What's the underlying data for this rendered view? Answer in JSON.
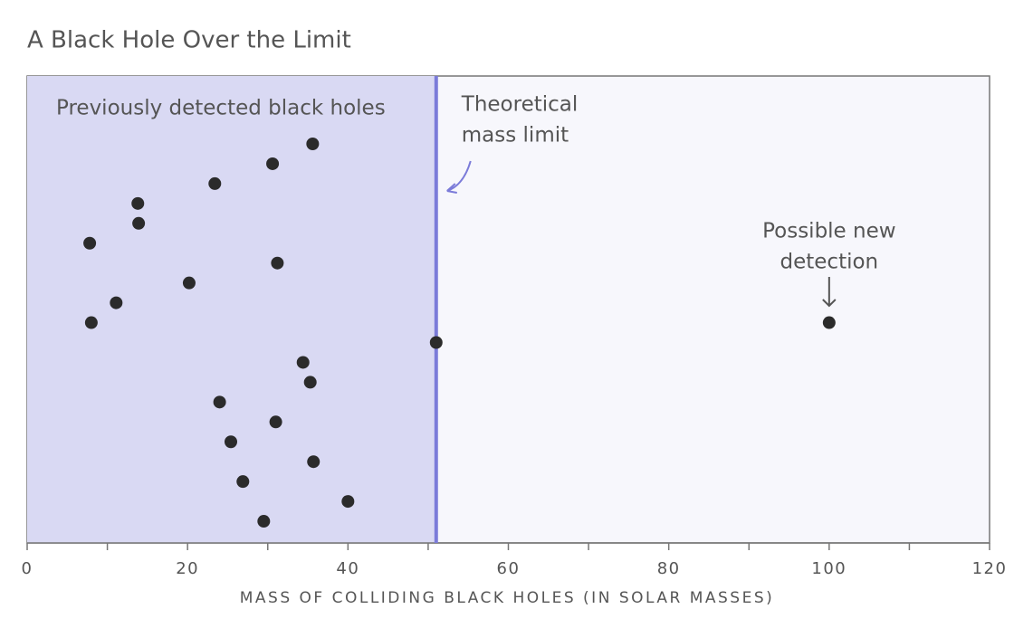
{
  "chart_data": {
    "type": "scatter",
    "title": "A Black Hole Over the Limit",
    "x_label": "MASS OF COLLIDING BLACK HOLES (IN SOLAR MASSES)",
    "series": [
      {
        "name": "Previously detected black holes",
        "color": "#2b2b2b",
        "x": [
          35.6,
          30.6,
          23.4,
          13.8,
          13.9,
          7.8,
          31.2,
          20.2,
          11.1,
          8.0,
          51,
          34.4,
          35.3,
          24.0,
          31.0,
          25.4,
          35.7,
          26.9,
          40.0,
          29.5
        ]
      },
      {
        "name": "Possible new detection",
        "color": "#2b2b2b",
        "x": [
          100
        ]
      }
    ],
    "region_color": "#d9d9f3",
    "background_color": "#f7f7fc",
    "mass_limit": {
      "value": 51,
      "color": "#7b7bd9",
      "label": [
        "Theoretical",
        "mass limit"
      ]
    },
    "new_detection_label": [
      "Possible new",
      "detection"
    ],
    "xlim": [
      0,
      120
    ],
    "xticks": [
      0,
      20,
      40,
      60,
      80,
      100,
      120
    ],
    "minor_xticks": [
      10,
      30,
      50,
      70,
      90,
      110
    ]
  }
}
